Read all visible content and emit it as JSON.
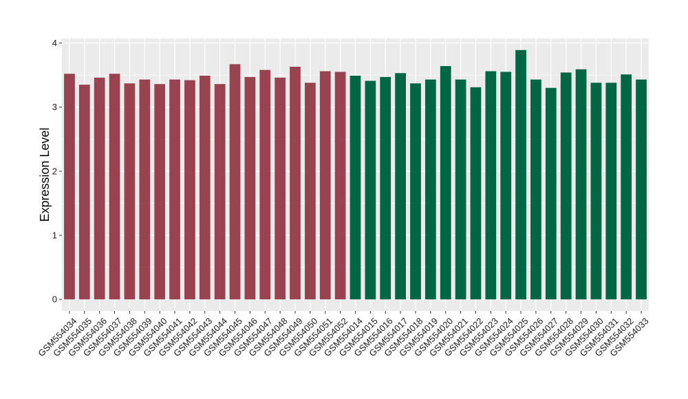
{
  "chart_data": {
    "type": "bar",
    "title": "",
    "xlabel": "",
    "ylabel": "Expression Level",
    "ylim": [
      -0.18,
      4.07
    ],
    "yticks": [
      0,
      1,
      2,
      3,
      4
    ],
    "grid": true,
    "legend": "none",
    "colors": {
      "group_a": "#9a4350",
      "group_b": "#006644",
      "panel": "#ebebeb",
      "gridline": "#ffffff"
    },
    "categories": [
      "GSM554034",
      "GSM554035",
      "GSM554036",
      "GSM554037",
      "GSM554038",
      "GSM554039",
      "GSM554040",
      "GSM554041",
      "GSM554042",
      "GSM554043",
      "GSM554044",
      "GSM554045",
      "GSM554046",
      "GSM554047",
      "GSM554048",
      "GSM554049",
      "GSM554050",
      "GSM554051",
      "GSM554052",
      "GSM554014",
      "GSM554015",
      "GSM554016",
      "GSM554017",
      "GSM554018",
      "GSM554019",
      "GSM554020",
      "GSM554021",
      "GSM554022",
      "GSM554023",
      "GSM554024",
      "GSM554025",
      "GSM554026",
      "GSM554027",
      "GSM554028",
      "GSM554029",
      "GSM554030",
      "GSM554031",
      "GSM554032",
      "GSM554033"
    ],
    "values": [
      3.52,
      3.35,
      3.46,
      3.52,
      3.37,
      3.43,
      3.36,
      3.43,
      3.42,
      3.49,
      3.36,
      3.67,
      3.47,
      3.58,
      3.46,
      3.63,
      3.38,
      3.56,
      3.55,
      3.49,
      3.41,
      3.47,
      3.53,
      3.37,
      3.43,
      3.64,
      3.43,
      3.31,
      3.56,
      3.55,
      3.89,
      3.43,
      3.3,
      3.54,
      3.59,
      3.38,
      3.38,
      3.51,
      3.43
    ],
    "groups": [
      "group_a",
      "group_a",
      "group_a",
      "group_a",
      "group_a",
      "group_a",
      "group_a",
      "group_a",
      "group_a",
      "group_a",
      "group_a",
      "group_a",
      "group_a",
      "group_a",
      "group_a",
      "group_a",
      "group_a",
      "group_a",
      "group_a",
      "group_b",
      "group_b",
      "group_b",
      "group_b",
      "group_b",
      "group_b",
      "group_b",
      "group_b",
      "group_b",
      "group_b",
      "group_b",
      "group_b",
      "group_b",
      "group_b",
      "group_b",
      "group_b",
      "group_b",
      "group_b",
      "group_b",
      "group_b"
    ]
  }
}
